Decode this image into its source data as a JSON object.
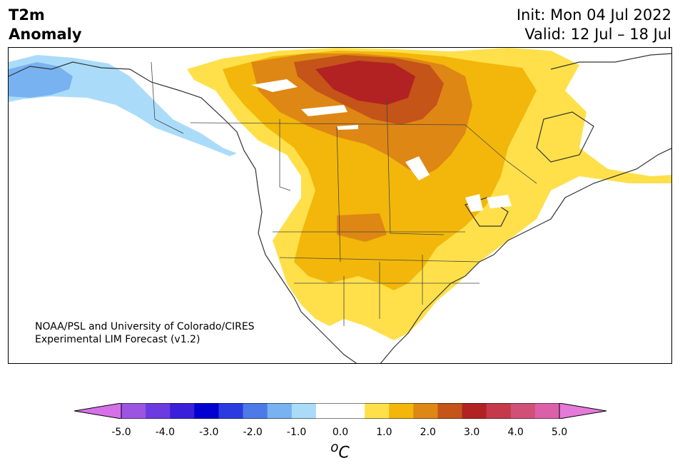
{
  "title": {
    "left_line1": "T2m",
    "left_line2": "Anomaly",
    "right_line1": "Init: Mon 04 Jul 2022",
    "right_line2": "Valid: 12 Jul – 18 Jul"
  },
  "credit": {
    "line1": "NOAA/PSL and University of Colorado/CIRES",
    "line2": "Experimental LIM Forecast (v1.2)"
  },
  "colorbar": {
    "unit": "oC",
    "unit_base": "C",
    "unit_sup": "o",
    "min_extend_color": "#d670e8",
    "max_extend_color": "#e67ad8",
    "colors": [
      "#9b55e0",
      "#6b3be0",
      "#3a20d8",
      "#0000d0",
      "#2a3be0",
      "#4c7ae8",
      "#78b2f0",
      "#aadcfa",
      "#ffffff",
      "#ffffff",
      "#ffe04a",
      "#f2b70a",
      "#de8714",
      "#c45418",
      "#b22222",
      "#c43a4a",
      "#d05078",
      "#dc60a8"
    ],
    "ticks": [
      "-5.0",
      "-4.0",
      "-3.0",
      "-2.0",
      "-1.0",
      "0.0",
      "1.0",
      "2.0",
      "3.0",
      "4.0",
      "5.0"
    ]
  },
  "anomaly_colors": {
    "cold_light": "#aadcfa",
    "cold_mid": "#78b2f0",
    "warm_1": "#ffe04a",
    "warm_2": "#f2b70a",
    "warm_3": "#de8714",
    "warm_4": "#c45418",
    "warm_5": "#b22222"
  },
  "labels_note": "none"
}
